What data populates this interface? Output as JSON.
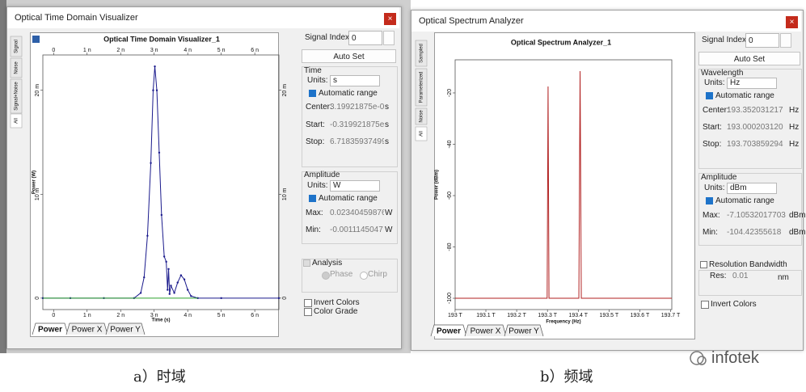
{
  "chart_data": [
    {
      "type": "line",
      "title": "Optical Time Domain Visualizer_1",
      "x_label": "Time (s)",
      "y_label": "Power (W)",
      "x": [
        -3.2e-10,
        5e-10,
        1.5e-09,
        2.4e-09,
        2.6e-09,
        2.7e-09,
        2.8e-09,
        2.9e-09,
        2.97e-09,
        3.02e-09,
        3.08e-09,
        3.15e-09,
        3.22e-09,
        3.3e-09,
        3.36e-09,
        3.4e-09,
        3.43e-09,
        3.46e-09,
        3.5e-09,
        3.6e-09,
        3.7e-09,
        3.8e-09,
        3.9e-09,
        4e-09,
        4.1e-09,
        4.3e-09,
        5e-09,
        6.72e-09
      ],
      "series": [
        {
          "color": "#1a1a8c",
          "marker": true,
          "values": [
            0,
            0,
            0,
            0,
            0.0005,
            0.002,
            0.006,
            0.013,
            0.02,
            0.0223,
            0.02,
            0.014,
            0.008,
            0.004,
            0.0035,
            0.0008,
            0.0028,
            0.0004,
            0.0012,
            0.0005,
            0.0015,
            0.0022,
            0.0018,
            0.0008,
            0.0002,
            0,
            0,
            0
          ]
        },
        {
          "color": "#2ca02c",
          "marker": false,
          "values": [
            0,
            0,
            0,
            0,
            0,
            0,
            0,
            0,
            0,
            0,
            0,
            0,
            0,
            0,
            0,
            0,
            0,
            0,
            0,
            0,
            0,
            0,
            0,
            0,
            0,
            0,
            null,
            null
          ]
        }
      ],
      "xlim": [
        -3.2e-10,
        6.72e-09
      ],
      "xticks": [
        0,
        {
          "value": 1e-09,
          "label": "1 n"
        },
        {
          "value": 2e-09,
          "label": "2 n"
        },
        {
          "value": 3e-09,
          "label": "3 n"
        },
        {
          "value": 4e-09,
          "label": "4 n"
        },
        {
          "value": 5e-09,
          "label": "5 n"
        },
        {
          "value": 6e-09,
          "label": "6 n"
        }
      ],
      "ylim": [
        -0.0011,
        0.0234
      ],
      "yticks": [
        0,
        {
          "value": 0.01,
          "label": "10 m"
        },
        {
          "value": 0.02,
          "label": "20 m"
        }
      ],
      "grid": false
    },
    {
      "type": "line",
      "title": "Optical Spectrum Analyzer_1",
      "x_label": "Frequency (Hz)",
      "y_label": "Power (dBm)",
      "x": [
        193000200000000,
        193299000000000,
        193302000000000,
        193305000000000,
        193402000000000,
        193406000000000,
        193410000000000,
        193703900000000
      ],
      "series": [
        {
          "color": "#b22222",
          "marker": false,
          "values": [
            -100,
            -100,
            -17.5,
            -100,
            -100,
            -11.5,
            -100,
            -100
          ]
        }
      ],
      "xlim": [
        193000200000000,
        193703900000000
      ],
      "xticks": [
        {
          "value": 193000000000000,
          "label": "193 T"
        },
        {
          "value": 193100000000000,
          "label": "193.1 T"
        },
        {
          "value": 193200000000000,
          "label": "193.2 T"
        },
        {
          "value": 193300000000000,
          "label": "193.3 T"
        },
        {
          "value": 193400000000000,
          "label": "193.4 T"
        },
        {
          "value": 193500000000000,
          "label": "193.5 T"
        },
        {
          "value": 193600000000000,
          "label": "193.6 T"
        },
        {
          "value": 193700000000000,
          "label": "193.7 T"
        }
      ],
      "ylim": [
        -104.4,
        -7.1
      ],
      "yticks": [
        -20,
        -40,
        -60,
        -80,
        -100
      ],
      "grid": false
    }
  ],
  "windows": [
    {
      "title": "Optical Time Domain Visualizer",
      "side_tabs": [
        "Signal",
        "Noise",
        "Signal+Noise",
        "All"
      ],
      "bottom_tabs": [
        "Power",
        "Power X",
        "Power Y"
      ],
      "signal_index_label": "Signal Index:",
      "signal_index": "0",
      "auto_set": "Auto Set",
      "groups": [
        {
          "title": "Time",
          "units_label": "Units:",
          "units": "s",
          "auto_range": "Automatic range",
          "fields": [
            {
              "label": "Center:",
              "value": "3.19921875e-0",
              "unit": "s"
            },
            {
              "label": "Start:",
              "value": "-0.319921875e",
              "unit": "s"
            },
            {
              "label": "Stop:",
              "value": "6.71835937499",
              "unit": "s"
            }
          ]
        },
        {
          "title": "Amplitude",
          "units_label": "Units:",
          "units": "W",
          "auto_range": "Automatic range",
          "fields": [
            {
              "label": "Max:",
              "value": "0.02340459876",
              "unit": "W"
            },
            {
              "label": "Min:",
              "value": "-0.0011145047",
              "unit": "W"
            }
          ]
        }
      ],
      "analysis": {
        "title": "Analysis",
        "options": [
          "Phase",
          "Chirp"
        ]
      },
      "checkboxes": [
        "Invert Colors",
        "Color Grade"
      ]
    },
    {
      "title": "Optical Spectrum Analyzer",
      "side_tabs": [
        "Sampled",
        "Parameterized",
        "Noise",
        "All"
      ],
      "bottom_tabs": [
        "Power",
        "Power X",
        "Power Y"
      ],
      "signal_index_label": "Signal Index:",
      "signal_index": "0",
      "auto_set": "Auto Set",
      "groups": [
        {
          "title": "Wavelength",
          "units_label": "Units:",
          "units": "Hz",
          "auto_range": "Automatic range",
          "fields": [
            {
              "label": "Center:",
              "value": "193.352031217",
              "unit": "Hz"
            },
            {
              "label": "Start:",
              "value": "193.000203120",
              "unit": "Hz"
            },
            {
              "label": "Stop:",
              "value": "193.703859294",
              "unit": "Hz"
            }
          ]
        },
        {
          "title": "Amplitude",
          "units_label": "Units:",
          "units": "dBm",
          "auto_range": "Automatic range",
          "fields": [
            {
              "label": "Max:",
              "value": "-7.10532017703",
              "unit": "dBm"
            },
            {
              "label": "Min:",
              "value": "-104.42355618",
              "unit": "dBm"
            }
          ]
        }
      ],
      "resolution": {
        "title": "Resolution Bandwidth",
        "label": "Res:",
        "value": "0.01",
        "unit": "nm"
      },
      "checkboxes": [
        "Invert Colors"
      ]
    }
  ],
  "captions": [
    "a）时域",
    "b）频域"
  ],
  "watermark": "infotek"
}
